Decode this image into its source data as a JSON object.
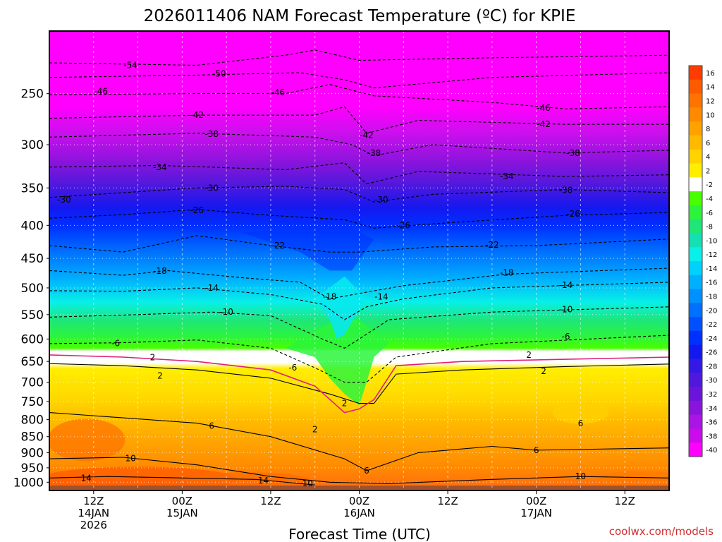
{
  "chart_data": {
    "type": "heatmap",
    "title": "2026011406 NAM Forecast Temperature (ºC) for KPIE",
    "xlabel": "Forecast Time (UTC)",
    "ylabel": "",
    "y_scale": "log-pressure",
    "y_ticks": [
      250,
      300,
      350,
      400,
      450,
      500,
      550,
      600,
      650,
      700,
      750,
      800,
      850,
      900,
      950,
      1000
    ],
    "ylim": [
      1030,
      200
    ],
    "x_ticks": [
      {
        "hour": 6,
        "lines": [
          "12Z",
          "14JAN",
          "2026"
        ]
      },
      {
        "hour": 18,
        "lines": [
          "00Z",
          "15JAN"
        ]
      },
      {
        "hour": 30,
        "lines": [
          "12Z"
        ]
      },
      {
        "hour": 42,
        "lines": [
          "00Z",
          "16JAN"
        ]
      },
      {
        "hour": 54,
        "lines": [
          "12Z"
        ]
      },
      {
        "hour": 66,
        "lines": [
          "00Z",
          "17JAN"
        ]
      },
      {
        "hour": 78,
        "lines": [
          "12Z"
        ]
      }
    ],
    "xlim": [
      0,
      84
    ],
    "colorbar": {
      "labels": [
        "16",
        "14",
        "12",
        "10",
        "8",
        "6",
        "4",
        "2",
        "-2",
        "-4",
        "-6",
        "-8",
        "-10",
        "-12",
        "-14",
        "-16",
        "-18",
        "-20",
        "-22",
        "-24",
        "-26",
        "-28",
        "-30",
        "-32",
        "-34",
        "-36",
        "-38",
        "-40"
      ],
      "colors": [
        "#ff3c00",
        "#ff5a00",
        "#ff7400",
        "#ff8a00",
        "#ffa200",
        "#ffba00",
        "#ffd200",
        "#ffee00",
        "#ffffff",
        "#48ff00",
        "#2cf43c",
        "#1ee678",
        "#14e0b4",
        "#08f0e8",
        "#00d2ff",
        "#00b0ff",
        "#0090ff",
        "#0070ff",
        "#0050ff",
        "#0030ff",
        "#1418f0",
        "#3418e6",
        "#5018dc",
        "#6c14dc",
        "#8a14dc",
        "#aa14e4",
        "#cc0aec",
        "#ff00ff"
      ]
    },
    "freezing_line_color": "#e0207a",
    "ground_color": "#a0522d",
    "contours": [
      {
        "level": -54,
        "labels": [
          {
            "hour": 11,
            "p": 226
          }
        ]
      },
      {
        "level": -50,
        "labels": [
          {
            "hour": 23,
            "p": 233
          }
        ]
      },
      {
        "level": -46,
        "labels": [
          {
            "hour": 7,
            "p": 248
          },
          {
            "hour": 31,
            "p": 249
          },
          {
            "hour": 67,
            "p": 263
          }
        ]
      },
      {
        "level": -42,
        "labels": [
          {
            "hour": 20,
            "p": 270
          },
          {
            "hour": 43,
            "p": 290
          },
          {
            "hour": 67,
            "p": 279
          }
        ]
      },
      {
        "level": -38,
        "labels": [
          {
            "hour": 22,
            "p": 289
          },
          {
            "hour": 44,
            "p": 309
          },
          {
            "hour": 71,
            "p": 309
          }
        ]
      },
      {
        "level": -34,
        "labels": [
          {
            "hour": 15,
            "p": 325
          },
          {
            "hour": 62,
            "p": 336
          }
        ]
      },
      {
        "level": -30,
        "labels": [
          {
            "hour": 2,
            "p": 365
          },
          {
            "hour": 22,
            "p": 350
          },
          {
            "hour": 45,
            "p": 365
          },
          {
            "hour": 70,
            "p": 353
          }
        ]
      },
      {
        "level": -26,
        "labels": [
          {
            "hour": 20,
            "p": 379
          },
          {
            "hour": 48,
            "p": 400
          },
          {
            "hour": 71,
            "p": 384
          }
        ]
      },
      {
        "level": -22,
        "labels": [
          {
            "hour": 31,
            "p": 430
          },
          {
            "hour": 60,
            "p": 429
          }
        ]
      },
      {
        "level": -18,
        "labels": [
          {
            "hour": 15,
            "p": 471
          },
          {
            "hour": 38,
            "p": 516
          },
          {
            "hour": 62,
            "p": 474
          }
        ]
      },
      {
        "level": -14,
        "labels": [
          {
            "hour": 22,
            "p": 500
          },
          {
            "hour": 45,
            "p": 516
          },
          {
            "hour": 70,
            "p": 495
          }
        ]
      },
      {
        "level": -10,
        "labels": [
          {
            "hour": 24,
            "p": 545
          },
          {
            "hour": 70,
            "p": 540
          }
        ]
      },
      {
        "level": -6,
        "labels": [
          {
            "hour": 9,
            "p": 609
          },
          {
            "hour": 33,
            "p": 665
          },
          {
            "hour": 70,
            "p": 595
          }
        ]
      },
      {
        "level": 2,
        "labels": [
          {
            "hour": 14,
            "p": 641
          },
          {
            "hour": 15,
            "p": 684
          },
          {
            "hour": 40,
            "p": 755
          },
          {
            "hour": 36,
            "p": 828
          },
          {
            "hour": 65,
            "p": 635
          },
          {
            "hour": 67,
            "p": 673
          }
        ]
      },
      {
        "level": 6,
        "labels": [
          {
            "hour": 22,
            "p": 818
          },
          {
            "hour": 43,
            "p": 960
          },
          {
            "hour": 66,
            "p": 892
          },
          {
            "hour": 72,
            "p": 811
          }
        ]
      },
      {
        "level": 10,
        "labels": [
          {
            "hour": 11,
            "p": 919
          },
          {
            "hour": 35,
            "p": 1005
          },
          {
            "hour": 72,
            "p": 980
          }
        ]
      },
      {
        "level": 14,
        "labels": [
          {
            "hour": 5,
            "p": 985
          },
          {
            "hour": 29,
            "p": 994
          }
        ]
      }
    ]
  },
  "credit": "coolwx.com/models"
}
